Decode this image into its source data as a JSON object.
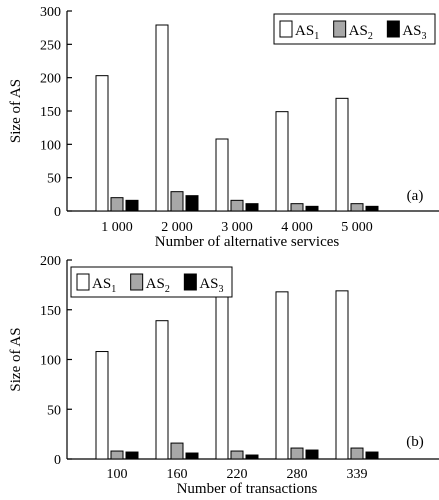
{
  "chart_data": [
    {
      "type": "bar",
      "panel_tag": "(a)",
      "xlabel": "Number of alternative services",
      "ylabel": "Size of AS",
      "ylim": [
        0,
        300
      ],
      "yticks": [
        0,
        50,
        100,
        150,
        200,
        250,
        300
      ],
      "categories": [
        "1 000",
        "2 000",
        "3 000",
        "4 000",
        "5 000"
      ],
      "legend_position": "top-right",
      "series": [
        {
          "name": "AS",
          "sub": "1",
          "color": "#ffffff",
          "values": [
            203,
            279,
            108,
            149,
            169
          ]
        },
        {
          "name": "AS",
          "sub": "2",
          "color": "#a8a8a8",
          "values": [
            20,
            29,
            16,
            11,
            11
          ]
        },
        {
          "name": "AS",
          "sub": "3",
          "color": "#000000",
          "values": [
            16,
            23,
            11,
            7,
            7
          ]
        }
      ]
    },
    {
      "type": "bar",
      "panel_tag": "(b)",
      "xlabel": "Number of transactions",
      "ylabel": "Size of AS",
      "ylim": [
        0,
        200
      ],
      "yticks": [
        0,
        50,
        100,
        150,
        200
      ],
      "categories": [
        "100",
        "160",
        "220",
        "280",
        "339"
      ],
      "legend_position": "top-left",
      "series": [
        {
          "name": "AS",
          "sub": "1",
          "color": "#ffffff",
          "values": [
            108,
            139,
            166,
            168,
            169
          ]
        },
        {
          "name": "AS",
          "sub": "2",
          "color": "#a8a8a8",
          "values": [
            8,
            16,
            8,
            11,
            11
          ]
        },
        {
          "name": "AS",
          "sub": "3",
          "color": "#000000",
          "values": [
            7,
            6,
            4,
            9,
            7
          ]
        }
      ]
    }
  ]
}
